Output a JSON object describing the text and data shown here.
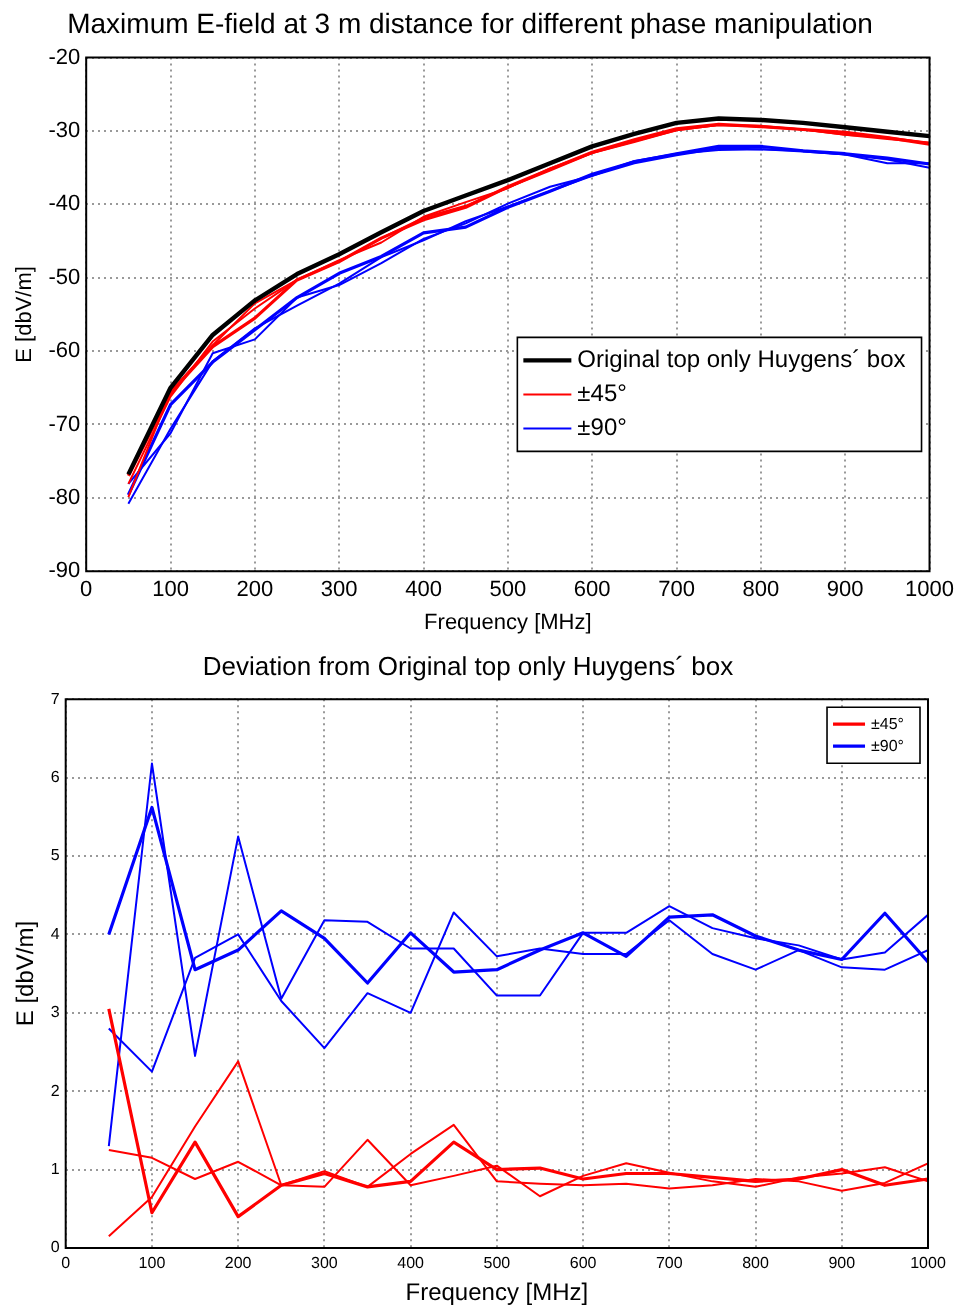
{
  "chart_data": [
    {
      "type": "line",
      "title": "Maximum E-field at 3 m distance for different phase manipulation",
      "xlabel": "Frequency [MHz]",
      "ylabel": "E [dbV/m]",
      "x": [
        50,
        100,
        150,
        200,
        250,
        300,
        350,
        400,
        450,
        500,
        550,
        600,
        650,
        700,
        750,
        800,
        850,
        900,
        950,
        1000
      ],
      "series": [
        {
          "name": "Original top only Huygens´ box",
          "color": "#000000",
          "values": [
            -76.8,
            -65,
            -57.8,
            -53.1,
            -49.5,
            -46.8,
            -43.8,
            -40.9,
            -38.8,
            -36.7,
            -34.4,
            -32.1,
            -30.4,
            -28.9,
            -28.3,
            -28.5,
            -28.9,
            -29.5,
            -30.1,
            -30.7
          ]
        },
        {
          "name": "±45°",
          "color": "#ff0000",
          "values": [
            -79.9,
            -65.5,
            -59.2,
            -53.5,
            -50.3,
            -47.8,
            -44.6,
            -41.8,
            -40.2,
            -37.7,
            -35.4,
            -33.0,
            -31.4,
            -29.9,
            -29.2,
            -29.4,
            -29.8,
            -30.5,
            -30.9,
            -31.6
          ]
        },
        {
          "color": "#ff0000",
          "values": [
            -78.1,
            -66.2,
            -58.7,
            -54.2,
            -50.3,
            -47.6,
            -45.2,
            -41.7,
            -39.7,
            -37.8,
            -35.1,
            -33.0,
            -31.5,
            -29.9,
            -29.2,
            -29.3,
            -29.8,
            -30.5,
            -31.1,
            -31.6
          ]
        },
        {
          "color": "#ff0000",
          "values": [
            -77.0,
            -65.7,
            -59.4,
            -55.5,
            -50.3,
            -47.8,
            -44.6,
            -42.1,
            -40.4,
            -37.6,
            -35.2,
            -32.9,
            -31.2,
            -29.7,
            -29.1,
            -29.4,
            -29.8,
            -30.2,
            -30.9,
            -31.8
          ]
        },
        {
          "name": "±90°",
          "color": "#0000ff",
          "values": [
            -80.8,
            -70.6,
            -61.4,
            -56.9,
            -53.8,
            -50.8,
            -47.2,
            -44.9,
            -42.3,
            -40.3,
            -38.2,
            -36.1,
            -34.1,
            -33.1,
            -32.6,
            -32.5,
            -32.7,
            -33.2,
            -34.4,
            -34.4
          ]
        },
        {
          "color": "#0000ff",
          "values": [
            -78.1,
            -71.2,
            -60.3,
            -58.4,
            -52.7,
            -51.0,
            -48.0,
            -44.7,
            -42.6,
            -39.9,
            -37.6,
            -36.1,
            -34.4,
            -33.3,
            -32.4,
            -32.5,
            -32.8,
            -33.2,
            -33.9,
            -35.0
          ]
        },
        {
          "color": "#0000ff",
          "values": [
            -79.6,
            -67.3,
            -61.5,
            -57.1,
            -52.7,
            -49.4,
            -47.1,
            -43.9,
            -43.1,
            -40.4,
            -38.2,
            -35.9,
            -34.2,
            -33.1,
            -32.1,
            -32.1,
            -32.7,
            -33.1,
            -33.7,
            -34.5
          ]
        }
      ],
      "xlim": [
        0,
        1000
      ],
      "xticks": [
        0,
        100,
        200,
        300,
        400,
        500,
        600,
        700,
        800,
        900,
        1000
      ],
      "ylim": [
        -90,
        -20
      ],
      "yticks": [
        -90,
        -80,
        -70,
        -60,
        -50,
        -40,
        -30,
        -20
      ],
      "grid": true,
      "legend": "right",
      "marker": "none"
    },
    {
      "type": "line",
      "title": "Deviation from Original top only Huygens´ box",
      "xlabel": "Frequency [MHz]",
      "ylabel": "E [dbV/m]",
      "x": [
        50,
        100,
        150,
        200,
        250,
        300,
        350,
        400,
        450,
        500,
        550,
        600,
        650,
        700,
        750,
        800,
        850,
        900,
        950,
        1000
      ],
      "series": [
        {
          "name": "±45°",
          "color": "#ff0000",
          "values": [
            3.05,
            0.45,
            1.35,
            0.4,
            0.8,
            0.95,
            0.78,
            0.85,
            1.35,
            1.0,
            1.02,
            0.88,
            0.95,
            0.95,
            0.9,
            0.85,
            0.88,
            1.0,
            0.8,
            0.88
          ]
        },
        {
          "color": "#ff0000",
          "values": [
            1.25,
            1.15,
            0.88,
            1.1,
            0.8,
            0.78,
            1.38,
            0.8,
            0.92,
            1.05,
            0.66,
            0.92,
            1.08,
            0.96,
            0.85,
            0.78,
            0.9,
            0.95,
            1.03,
            0.85
          ]
        },
        {
          "color": "#ff0000",
          "values": [
            0.15,
            0.65,
            1.55,
            2.38,
            0.8,
            0.98,
            0.78,
            1.2,
            1.57,
            0.85,
            0.82,
            0.8,
            0.82,
            0.76,
            0.8,
            0.88,
            0.85,
            0.73,
            0.83,
            1.08
          ]
        },
        {
          "name": "±90°",
          "color": "#0000ff",
          "values": [
            4.0,
            5.62,
            3.55,
            3.8,
            4.3,
            3.95,
            3.38,
            4.02,
            3.52,
            3.55,
            3.8,
            4.02,
            3.72,
            4.22,
            4.25,
            3.98,
            3.8,
            3.68,
            4.27,
            3.65
          ]
        },
        {
          "color": "#0000ff",
          "values": [
            1.3,
            6.18,
            2.45,
            5.25,
            3.18,
            4.18,
            4.16,
            3.82,
            3.82,
            3.22,
            3.22,
            4.02,
            4.02,
            4.36,
            4.08,
            3.95,
            3.86,
            3.68,
            3.77,
            4.25
          ]
        },
        {
          "color": "#0000ff",
          "values": [
            2.8,
            2.25,
            3.7,
            4.0,
            3.15,
            2.55,
            3.25,
            3.0,
            4.28,
            3.72,
            3.82,
            3.75,
            3.75,
            4.18,
            3.75,
            3.55,
            3.8,
            3.58,
            3.55,
            3.8
          ]
        }
      ],
      "xlim": [
        0,
        1000
      ],
      "xticks": [
        0,
        100,
        200,
        300,
        400,
        500,
        600,
        700,
        800,
        900,
        1000
      ],
      "ylim": [
        0,
        7
      ],
      "yticks": [
        0,
        1,
        2,
        3,
        4,
        5,
        6,
        7
      ],
      "grid": true,
      "legend": "top right",
      "marker": "none"
    }
  ]
}
